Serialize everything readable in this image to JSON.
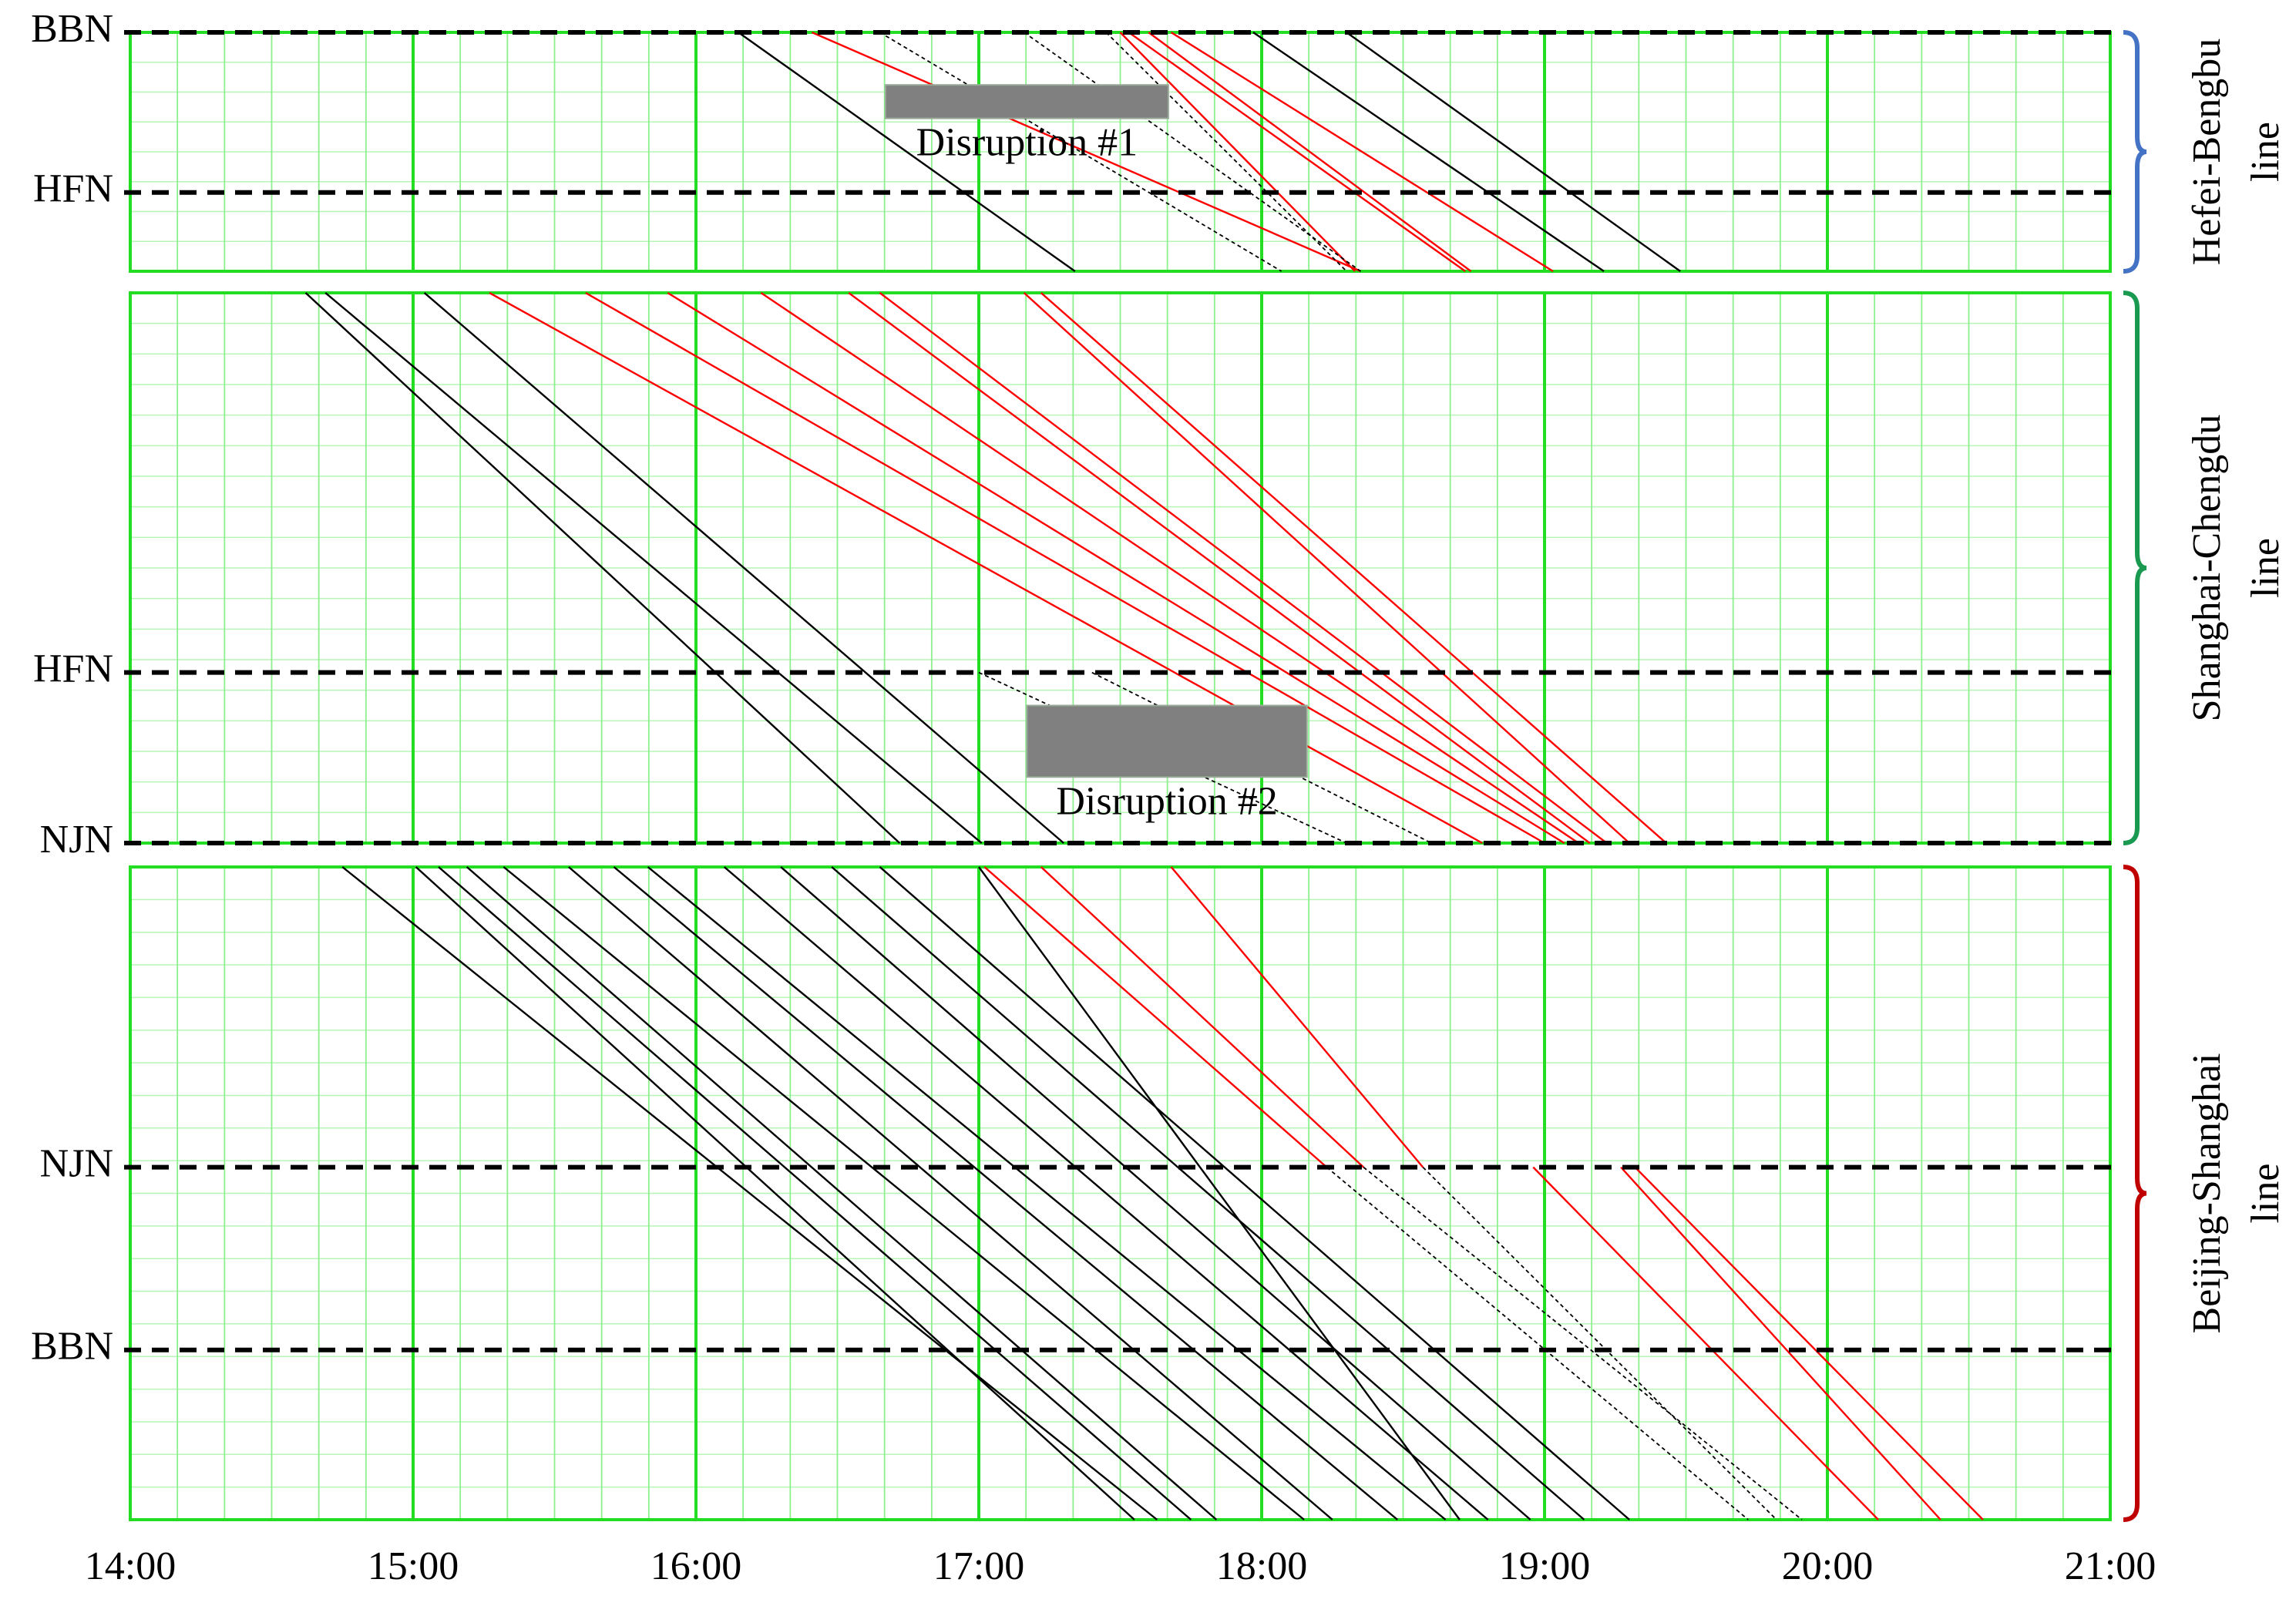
{
  "chart_data": [
    {
      "type": "line",
      "label_lines": [
        "Hefei-Bengbu",
        "line"
      ],
      "bracket_color": "#4472c4",
      "ylim": [
        0,
        100
      ],
      "yticks": [
        {
          "value": 100,
          "label": "BBN"
        },
        {
          "value": 33,
          "label": "HFN"
        }
      ],
      "annotations": [
        {
          "text": "Disruption #1",
          "x": [
            16.67,
            17.67
          ],
          "y": [
            64,
            78
          ]
        }
      ],
      "series": [
        {
          "color": "#000000",
          "values": [
            100,
            0
          ],
          "x": [
            16.15,
            17.34
          ]
        },
        {
          "color": "#000000",
          "values": [
            100,
            0
          ],
          "x": [
            17.97,
            19.21
          ]
        },
        {
          "color": "#000000",
          "values": [
            100,
            0
          ],
          "x": [
            18.3,
            19.48
          ]
        },
        {
          "color": "#ff0000",
          "values": [
            100,
            0
          ],
          "x": [
            16.41,
            18.35
          ]
        },
        {
          "color": "#ff0000",
          "values": [
            100,
            0
          ],
          "x": [
            17.5,
            18.33
          ]
        },
        {
          "color": "#ff0000",
          "values": [
            100,
            0
          ],
          "x": [
            17.53,
            18.72
          ]
        },
        {
          "color": "#ff0000",
          "values": [
            100,
            0
          ],
          "x": [
            17.6,
            18.74
          ]
        },
        {
          "color": "#ff0000",
          "values": [
            100,
            0
          ],
          "x": [
            17.68,
            19.03
          ]
        },
        {
          "color": "#000000",
          "dash": true,
          "values": [
            100,
            0
          ],
          "x": [
            16.65,
            18.07
          ]
        },
        {
          "color": "#000000",
          "dash": true,
          "values": [
            100,
            0
          ],
          "x": [
            17.16,
            18.35
          ]
        },
        {
          "color": "#000000",
          "dash": true,
          "values": [
            100,
            0
          ],
          "x": [
            17.45,
            18.3
          ]
        }
      ]
    },
    {
      "type": "line",
      "label_lines": [
        "Shanghai-Chengdu",
        "line"
      ],
      "bracket_color": "#1a9a50",
      "ylim": [
        0,
        100
      ],
      "yticks": [
        {
          "value": 31,
          "label": "HFN"
        },
        {
          "value": 0,
          "label": "NJN"
        }
      ],
      "annotations": [
        {
          "text": "Disruption #2",
          "x": [
            17.17,
            18.16
          ],
          "y": [
            12,
            25
          ]
        }
      ],
      "series": [
        {
          "color": "#000000",
          "values": [
            100,
            0
          ],
          "x": [
            14.62,
            16.72
          ]
        },
        {
          "color": "#000000",
          "values": [
            100,
            0
          ],
          "x": [
            14.69,
            17.01
          ]
        },
        {
          "color": "#000000",
          "values": [
            100,
            0
          ],
          "x": [
            15.04,
            17.3
          ]
        },
        {
          "color": "#ff0000",
          "values": [
            100,
            0
          ],
          "x": [
            15.27,
            18.78
          ]
        },
        {
          "color": "#ff0000",
          "values": [
            100,
            0
          ],
          "x": [
            15.61,
            19.0
          ]
        },
        {
          "color": "#ff0000",
          "values": [
            100,
            0
          ],
          "x": [
            15.9,
            19.07
          ]
        },
        {
          "color": "#ff0000",
          "values": [
            100,
            0
          ],
          "x": [
            16.23,
            19.12
          ]
        },
        {
          "color": "#ff0000",
          "values": [
            100,
            0
          ],
          "x": [
            16.54,
            19.16
          ]
        },
        {
          "color": "#ff0000",
          "values": [
            100,
            0
          ],
          "x": [
            16.65,
            19.22
          ]
        },
        {
          "color": "#ff0000",
          "values": [
            100,
            0
          ],
          "x": [
            17.16,
            19.3
          ]
        },
        {
          "color": "#ff0000",
          "values": [
            100,
            0
          ],
          "x": [
            17.22,
            19.43
          ]
        },
        {
          "color": "#000000",
          "dash": true,
          "values": [
            31,
            0
          ],
          "x": [
            17.0,
            18.3
          ]
        },
        {
          "color": "#000000",
          "dash": true,
          "values": [
            31,
            0
          ],
          "x": [
            17.4,
            18.6
          ]
        }
      ]
    },
    {
      "type": "line",
      "label_lines": [
        "Beijing-Shanghai",
        "line"
      ],
      "bracket_color": "#c00000",
      "ylim": [
        0,
        100
      ],
      "yticks": [
        {
          "value": 54,
          "label": "NJN"
        },
        {
          "value": 26,
          "label": "BBN"
        }
      ],
      "xlim": [
        14,
        21
      ],
      "x_minor_divisions": 6,
      "xticks": [
        {
          "value": 14,
          "label": "14:00"
        },
        {
          "value": 15,
          "label": "15:00"
        },
        {
          "value": 16,
          "label": "16:00"
        },
        {
          "value": 17,
          "label": "17:00"
        },
        {
          "value": 18,
          "label": "18:00"
        },
        {
          "value": 19,
          "label": "19:00"
        },
        {
          "value": 20,
          "label": "20:00"
        },
        {
          "value": 21,
          "label": "21:00"
        }
      ],
      "series": [
        {
          "color": "#000000",
          "values": [
            100,
            0
          ],
          "x": [
            14.75,
            17.63
          ]
        },
        {
          "color": "#000000",
          "values": [
            100,
            0
          ],
          "x": [
            15.01,
            17.55
          ]
        },
        {
          "color": "#000000",
          "values": [
            100,
            0
          ],
          "x": [
            15.09,
            17.75
          ]
        },
        {
          "color": "#000000",
          "values": [
            100,
            0
          ],
          "x": [
            15.19,
            17.84
          ]
        },
        {
          "color": "#000000",
          "values": [
            100,
            0
          ],
          "x": [
            15.32,
            18.15
          ]
        },
        {
          "color": "#000000",
          "values": [
            100,
            0
          ],
          "x": [
            15.55,
            18.25
          ]
        },
        {
          "color": "#000000",
          "values": [
            100,
            0
          ],
          "x": [
            15.71,
            18.48
          ]
        },
        {
          "color": "#000000",
          "values": [
            100,
            0
          ],
          "x": [
            15.83,
            18.65
          ]
        },
        {
          "color": "#000000",
          "values": [
            100,
            0
          ],
          "x": [
            16.1,
            18.8
          ]
        },
        {
          "color": "#000000",
          "values": [
            100,
            0
          ],
          "x": [
            16.3,
            18.95
          ]
        },
        {
          "color": "#000000",
          "values": [
            100,
            0
          ],
          "x": [
            16.48,
            19.14
          ]
        },
        {
          "color": "#000000",
          "values": [
            100,
            0
          ],
          "x": [
            16.65,
            19.3
          ]
        },
        {
          "color": "#000000",
          "values": [
            100,
            0
          ],
          "x": [
            17.0,
            18.7
          ]
        },
        {
          "color": "#ff0000",
          "values": [
            100,
            54
          ],
          "x": [
            17.02,
            18.23
          ]
        },
        {
          "color": "#ff0000",
          "values": [
            100,
            54
          ],
          "x": [
            17.22,
            18.36
          ]
        },
        {
          "color": "#ff0000",
          "values": [
            100,
            54
          ],
          "x": [
            17.68,
            18.57
          ]
        },
        {
          "color": "#000000",
          "dash": true,
          "values": [
            54,
            0
          ],
          "x": [
            18.23,
            19.72
          ]
        },
        {
          "color": "#000000",
          "dash": true,
          "values": [
            54,
            0
          ],
          "x": [
            18.36,
            19.91
          ]
        },
        {
          "color": "#000000",
          "dash": true,
          "values": [
            54,
            0
          ],
          "x": [
            18.57,
            19.82
          ]
        },
        {
          "color": "#ff0000",
          "values": [
            54,
            0
          ],
          "x": [
            18.96,
            20.18
          ]
        },
        {
          "color": "#ff0000",
          "values": [
            54,
            0
          ],
          "x": [
            19.27,
            20.4
          ]
        },
        {
          "color": "#ff0000",
          "values": [
            54,
            0
          ],
          "x": [
            19.32,
            20.55
          ]
        }
      ]
    }
  ]
}
